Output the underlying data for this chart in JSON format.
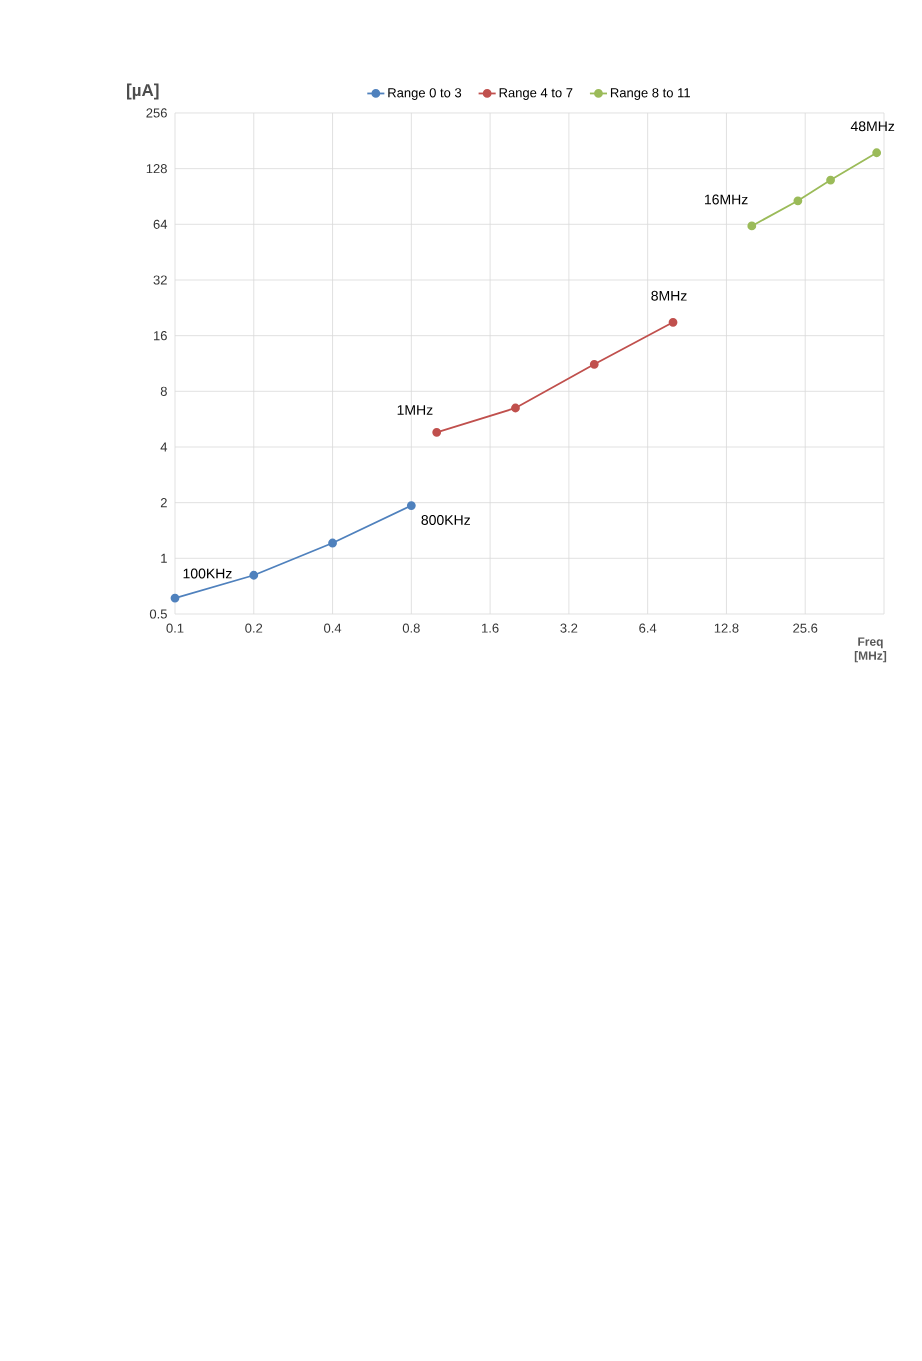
{
  "chart_data": {
    "type": "line",
    "ylabel": "[µA]",
    "xlabel": "Freq [MHz]",
    "log": "xy",
    "grid": true,
    "legend": "top",
    "marker": "circle",
    "line_style": "solid",
    "xlim": [
      0.1,
      51.2
    ],
    "xticks": [
      0.1,
      0.2,
      0.4,
      0.8,
      1.6,
      3.2,
      6.4,
      12.8,
      25.6,
      {
        "value": 51.2,
        "label": null
      }
    ],
    "ylim": [
      0.5,
      256
    ],
    "yticks": [
      0.5,
      1,
      2,
      4,
      8,
      16,
      32,
      64,
      128,
      256
    ],
    "series": [
      {
        "name": "Range 0 to 3",
        "color": "#4f81bd",
        "x": [
          0.1,
          0.2,
          0.4,
          0.8
        ],
        "values": [
          0.61,
          0.81,
          1.21,
          1.93
        ]
      },
      {
        "name": "Range 4 to 7",
        "color": "#c0504d",
        "x": [
          1,
          2,
          4,
          8
        ],
        "values": [
          4.8,
          6.5,
          11.2,
          18.9
        ]
      },
      {
        "name": "Range 8 to 11",
        "color": "#9bbb59",
        "x": [
          16,
          24,
          32,
          48
        ],
        "values": [
          62.7,
          85.8,
          111,
          156
        ]
      }
    ],
    "annotations": [
      {
        "text": "100KHz",
        "x": 0.1,
        "y": 0.61
      },
      {
        "text": "800KHz",
        "x": 0.8,
        "y": 1.93
      },
      {
        "text": "1MHz",
        "x": 1,
        "y": 4.8
      },
      {
        "text": "8MHz",
        "x": 8,
        "y": 18.9
      },
      {
        "text": "16MHz",
        "x": 16,
        "y": 62.7
      },
      {
        "text": "48MHz",
        "x": 48,
        "y": 156
      }
    ]
  }
}
